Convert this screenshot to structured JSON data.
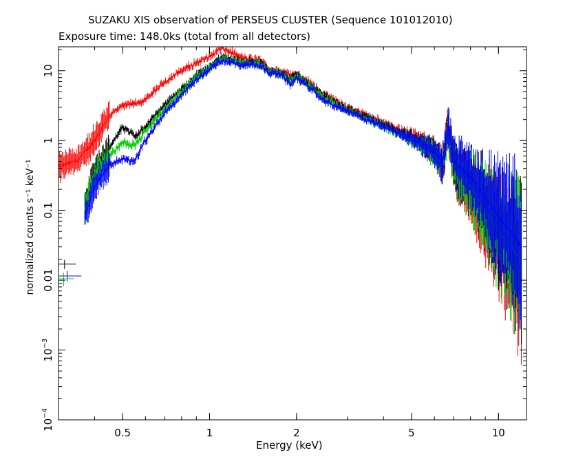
{
  "chart_data": {
    "type": "scatter",
    "title": "SUZAKU XIS observation of PERSEUS CLUSTER (Sequence 101012010)",
    "subtitle": "Exposure time: 148.0ks (total from all detectors)",
    "xlabel": "Energy (keV)",
    "ylabel": "normalized counts s⁻¹ keV⁻¹",
    "xscale": "log",
    "yscale": "log",
    "xlim": [
      0.3,
      12.5
    ],
    "ylim": [
      0.0001,
      22
    ],
    "grid": false,
    "legend": "none",
    "x_ticks": [
      {
        "value": 0.5,
        "label": "0.5"
      },
      {
        "value": 1,
        "label": "1"
      },
      {
        "value": 2,
        "label": "2"
      },
      {
        "value": 5,
        "label": "5"
      },
      {
        "value": 10,
        "label": "10"
      }
    ],
    "y_ticks": [
      {
        "value": 10,
        "label": "10",
        "base": null,
        "exp": null
      },
      {
        "value": 1,
        "label": "1",
        "base": null,
        "exp": null
      },
      {
        "value": 0.1,
        "label": "0.1",
        "base": null,
        "exp": null
      },
      {
        "value": 0.01,
        "label": "0.01",
        "base": null,
        "exp": null
      },
      {
        "value": 0.001,
        "label": "",
        "base": "10",
        "exp": "−3"
      },
      {
        "value": 0.0001,
        "label": "",
        "base": "10",
        "exp": "−4"
      }
    ],
    "series": [
      {
        "color": "#ff0000",
        "x": [
          0.3,
          0.35,
          0.4,
          0.45,
          0.5,
          0.55,
          0.6,
          0.7,
          0.8,
          0.9,
          1.0,
          1.1,
          1.2,
          1.3,
          1.4,
          1.5,
          1.6,
          1.8,
          2.0,
          2.2,
          2.5,
          3.0,
          4.0,
          5.0,
          6.0,
          6.4,
          6.7,
          7.0,
          8.0,
          9.0,
          10.0,
          11.0,
          12.0
        ],
        "y": [
          0.42,
          0.52,
          1.0,
          2.3,
          3.1,
          3.4,
          3.8,
          7.0,
          10.0,
          13.0,
          16.0,
          21.0,
          18.0,
          15.0,
          14.5,
          14.0,
          10.5,
          9.5,
          8.7,
          7.0,
          4.5,
          3.0,
          1.8,
          1.2,
          0.75,
          0.45,
          1.5,
          0.4,
          0.2,
          0.085,
          0.04,
          0.02,
          0.01
        ]
      },
      {
        "color": "#000000",
        "x": [
          0.37,
          0.4,
          0.45,
          0.5,
          0.55,
          0.6,
          0.7,
          0.8,
          0.9,
          1.0,
          1.1,
          1.2,
          1.3,
          1.4,
          1.5,
          1.6,
          1.8,
          1.9,
          2.0,
          2.2,
          2.5,
          3.0,
          4.0,
          5.0,
          6.0,
          6.4,
          6.7,
          7.0,
          8.0,
          9.0,
          10.0,
          11.0,
          12.0
        ],
        "y": [
          0.12,
          0.35,
          0.8,
          1.55,
          1.15,
          1.6,
          3.2,
          5.5,
          8.5,
          11.5,
          15.5,
          14.5,
          13.0,
          13.5,
          13.0,
          10.0,
          9.0,
          7.5,
          9.0,
          6.5,
          4.2,
          2.8,
          1.7,
          1.1,
          0.7,
          0.45,
          1.6,
          0.45,
          0.25,
          0.12,
          0.06,
          0.03,
          0.02
        ]
      },
      {
        "color": "#00cc00",
        "x": [
          0.37,
          0.4,
          0.45,
          0.5,
          0.55,
          0.6,
          0.7,
          0.8,
          0.9,
          1.0,
          1.1,
          1.2,
          1.3,
          1.4,
          1.5,
          1.6,
          1.8,
          1.9,
          2.0,
          2.2,
          2.5,
          3.0,
          4.0,
          5.0,
          6.0,
          6.4,
          6.7,
          7.0,
          8.0,
          9.0,
          10.0,
          11.0,
          12.0
        ],
        "y": [
          0.1,
          0.3,
          0.6,
          0.95,
          0.85,
          1.35,
          2.8,
          5.0,
          8.0,
          11.0,
          14.5,
          14.0,
          12.5,
          13.0,
          12.5,
          9.8,
          8.8,
          7.0,
          8.5,
          6.2,
          4.0,
          2.7,
          1.6,
          1.05,
          0.68,
          0.42,
          1.5,
          0.42,
          0.22,
          0.1,
          0.05,
          0.03,
          0.02
        ]
      },
      {
        "color": "#0000ff",
        "x": [
          0.37,
          0.4,
          0.45,
          0.5,
          0.55,
          0.6,
          0.7,
          0.8,
          0.9,
          1.0,
          1.1,
          1.2,
          1.3,
          1.4,
          1.5,
          1.6,
          1.8,
          1.9,
          2.0,
          2.2,
          2.5,
          3.0,
          4.0,
          5.0,
          6.0,
          6.4,
          6.7,
          7.0,
          8.0,
          9.0,
          10.0,
          11.0,
          12.0
        ],
        "y": [
          0.08,
          0.22,
          0.45,
          0.55,
          0.5,
          1.0,
          2.5,
          4.5,
          7.5,
          10.5,
          14.0,
          13.0,
          12.0,
          12.5,
          12.0,
          9.5,
          8.5,
          6.3,
          8.0,
          6.0,
          3.8,
          2.6,
          1.6,
          1.05,
          0.7,
          0.45,
          1.7,
          0.5,
          0.3,
          0.15,
          0.08,
          0.05,
          0.03
        ]
      }
    ],
    "reference_error_bars": [
      {
        "color": "#000000",
        "x_low": 0.3,
        "x_high": 0.345,
        "y": 0.017,
        "y_low": 0.0145,
        "y_high": 0.0195
      },
      {
        "color": "#0000ff",
        "x_low": 0.3,
        "x_high": 0.36,
        "y": 0.0115,
        "y_low": 0.0095,
        "y_high": 0.0135
      },
      {
        "color": "#00cc00",
        "x_low": 0.3,
        "x_high": 0.34,
        "y": 0.0105,
        "y_low": 0.0082,
        "y_high": 0.0128
      }
    ]
  }
}
